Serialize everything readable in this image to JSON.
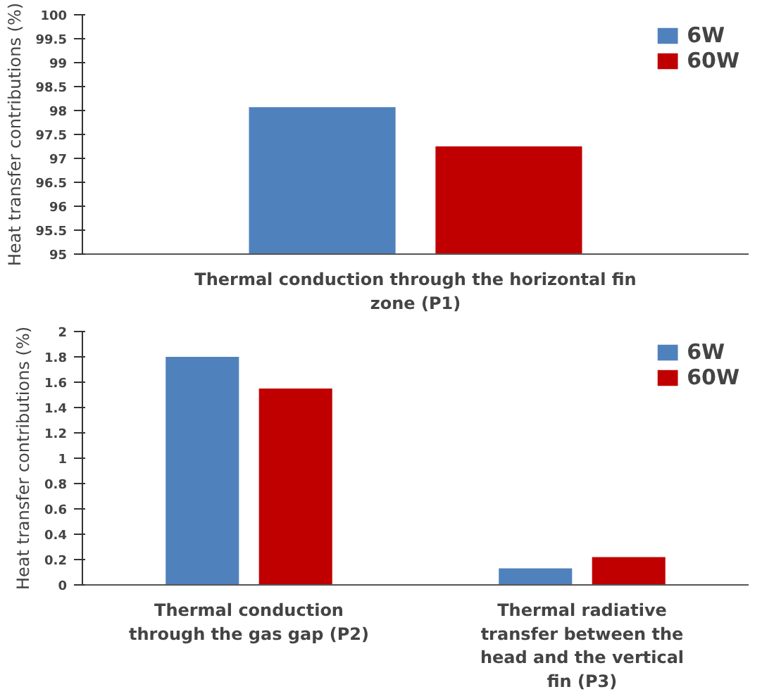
{
  "chart_data": [
    {
      "type": "bar",
      "ylabel": "Heat transfer contributions (%)",
      "categories": [
        "Thermal conduction through the horizontal fin zone (P1)"
      ],
      "series": [
        {
          "name": "6W",
          "color": "#4f81bd",
          "values": [
            98.07
          ]
        },
        {
          "name": "60W",
          "color": "#c00000",
          "values": [
            97.25
          ]
        }
      ],
      "ylim": [
        95,
        100
      ],
      "yticks": [
        95,
        95.5,
        96,
        96.5,
        97,
        97.5,
        98,
        98.5,
        99,
        99.5,
        100
      ],
      "grid": false,
      "legend": "top right"
    },
    {
      "type": "bar",
      "ylabel": "Heat transfer contributions (%)",
      "categories": [
        "Thermal conduction through the gas gap (P2)",
        "Thermal radiative transfer between the head and the vertical fin (P3)"
      ],
      "series": [
        {
          "name": "6W",
          "color": "#4f81bd",
          "values": [
            1.8,
            0.13
          ]
        },
        {
          "name": "60W",
          "color": "#c00000",
          "values": [
            1.55,
            0.22
          ]
        }
      ],
      "ylim": [
        0,
        2
      ],
      "yticks": [
        0,
        0.2,
        0.4,
        0.6,
        0.8,
        1,
        1.2,
        1.4,
        1.6,
        1.8,
        2
      ],
      "grid": false,
      "legend": "top right"
    }
  ]
}
